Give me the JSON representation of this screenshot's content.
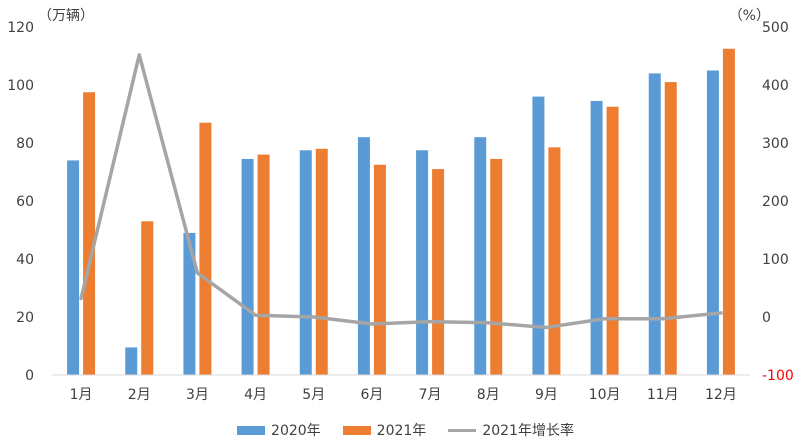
{
  "chart_data": {
    "type": "bar",
    "categories": [
      "1月",
      "2月",
      "3月",
      "4月",
      "5月",
      "6月",
      "7月",
      "8月",
      "9月",
      "10月",
      "11月",
      "12月"
    ],
    "series": [
      {
        "name": "2020年",
        "type": "bar",
        "axis": "left",
        "color": "#5b9bd5",
        "values": [
          74,
          9.5,
          49,
          74.5,
          77.5,
          82,
          77.5,
          82,
          96,
          94.5,
          104,
          105
        ]
      },
      {
        "name": "2021年",
        "type": "bar",
        "axis": "left",
        "color": "#ed7d31",
        "values": [
          97.5,
          53,
          87,
          76,
          78,
          72.5,
          71,
          74.5,
          78.5,
          92.5,
          101,
          112.5
        ]
      },
      {
        "name": "2021年增长率",
        "type": "line",
        "axis": "right",
        "color": "#a5a5a5",
        "values": [
          32,
          452,
          76,
          3,
          0,
          -12,
          -8,
          -10,
          -18,
          -3,
          -3,
          7
        ]
      }
    ],
    "y_left": {
      "unit": "（万辆）",
      "ylim": [
        0,
        120
      ],
      "ticks": [
        "0",
        "20",
        "40",
        "60",
        "80",
        "100",
        "120"
      ]
    },
    "y_right": {
      "unit": "（%）",
      "ylim": [
        -100,
        500
      ],
      "ticks": [
        "-100",
        "0",
        "100",
        "200",
        "300",
        "400",
        "500"
      ],
      "negative_tick_color": "#ff0000"
    },
    "legend_position": "bottom",
    "grid": false
  }
}
